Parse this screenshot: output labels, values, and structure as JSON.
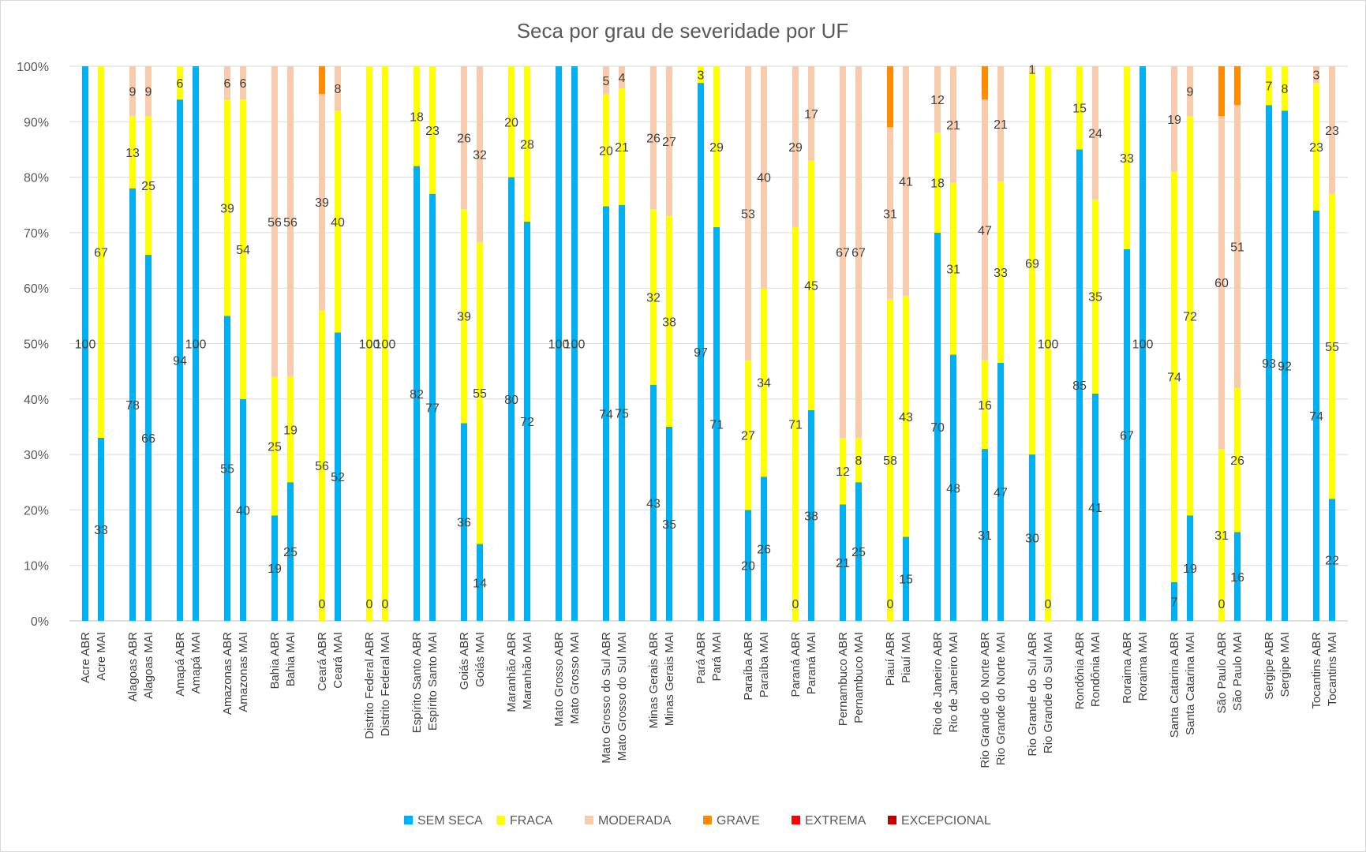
{
  "chart_data": {
    "type": "bar",
    "stacked": true,
    "normalized": true,
    "title": "Seca por grau de severidade por UF",
    "xlabel": "",
    "ylabel": "",
    "ylim": [
      0,
      100
    ],
    "yticks": [
      "0%",
      "10%",
      "20%",
      "30%",
      "40%",
      "50%",
      "60%",
      "70%",
      "80%",
      "90%",
      "100%"
    ],
    "gridlines": true,
    "legend_position": "bottom",
    "groups": [
      {
        "bars": [
          {
            "label": "Acre ABR",
            "values": [
              100,
              0,
              0,
              0,
              0,
              0
            ]
          },
          {
            "label": "Acre MAI",
            "values": [
              33,
              67,
              0,
              0,
              0,
              0
            ]
          }
        ]
      },
      {
        "bars": [
          {
            "label": "Alagoas ABR",
            "values": [
              78,
              13,
              9,
              0,
              0,
              0
            ]
          },
          {
            "label": "Alagoas MAI",
            "values": [
              66,
              25,
              9,
              0,
              0,
              0
            ]
          }
        ]
      },
      {
        "bars": [
          {
            "label": "Amapá ABR",
            "values": [
              94,
              6,
              0,
              0,
              0,
              0
            ]
          },
          {
            "label": "Amapá MAI",
            "values": [
              100,
              0,
              0,
              0,
              0,
              0
            ]
          }
        ]
      },
      {
        "bars": [
          {
            "label": "Amazonas ABR",
            "values": [
              55,
              39,
              6,
              0,
              0,
              0
            ]
          },
          {
            "label": "Amazonas MAI",
            "values": [
              40,
              54,
              6,
              0,
              0,
              0
            ]
          }
        ]
      },
      {
        "bars": [
          {
            "label": "Bahia ABR",
            "values": [
              19,
              25,
              56,
              0,
              0,
              0
            ]
          },
          {
            "label": "Bahia MAI",
            "values": [
              25,
              19,
              56,
              0,
              0,
              0
            ]
          }
        ]
      },
      {
        "bars": [
          {
            "label": "Ceará ABR",
            "values": [
              0,
              56,
              39,
              5,
              0,
              0
            ]
          },
          {
            "label": "Ceará MAI",
            "values": [
              52,
              40,
              8,
              0,
              0,
              0
            ]
          }
        ]
      },
      {
        "bars": [
          {
            "label": "Distrito Federal ABR",
            "values": [
              0,
              100,
              0,
              0,
              0,
              0
            ]
          },
          {
            "label": "Distrito Federal MAI",
            "values": [
              0,
              100,
              0,
              0,
              0,
              0
            ]
          }
        ]
      },
      {
        "bars": [
          {
            "label": "Espírito Santo ABR",
            "values": [
              82,
              18,
              0,
              0,
              0,
              0
            ]
          },
          {
            "label": "Espírito Santo MAI",
            "values": [
              77,
              23,
              0,
              0,
              0,
              0
            ]
          }
        ]
      },
      {
        "bars": [
          {
            "label": "Goiás ABR",
            "values": [
              36,
              39,
              26,
              0,
              0,
              0
            ]
          },
          {
            "label": "Goiás MAI",
            "values": [
              14,
              55,
              32,
              0,
              0,
              0
            ]
          }
        ]
      },
      {
        "bars": [
          {
            "label": "Maranhão ABR",
            "values": [
              80,
              20,
              0,
              0,
              0,
              0
            ]
          },
          {
            "label": "Maranhão MAI",
            "values": [
              72,
              28,
              0,
              0,
              0,
              0
            ]
          }
        ]
      },
      {
        "bars": [
          {
            "label": "Mato Grosso ABR",
            "values": [
              100,
              0,
              0,
              0,
              0,
              0
            ]
          },
          {
            "label": "Mato Grosso MAI",
            "values": [
              100,
              0,
              0,
              0,
              0,
              0
            ]
          }
        ]
      },
      {
        "bars": [
          {
            "label": "Mato Grosso do Sul ABR",
            "values": [
              74,
              20,
              5,
              0,
              0,
              0
            ]
          },
          {
            "label": "Mato Grosso do Sul MAI",
            "values": [
              75,
              21,
              4,
              0,
              0,
              0
            ]
          }
        ]
      },
      {
        "bars": [
          {
            "label": "Minas Gerais ABR",
            "values": [
              43,
              32,
              26,
              0,
              0,
              0
            ]
          },
          {
            "label": "Minas Gerais MAI",
            "values": [
              35,
              38,
              27,
              0,
              0,
              0
            ]
          }
        ]
      },
      {
        "bars": [
          {
            "label": "Pará ABR",
            "values": [
              97,
              3,
              0,
              0,
              0,
              0
            ]
          },
          {
            "label": "Pará MAI",
            "values": [
              71,
              29,
              0,
              0,
              0,
              0
            ]
          }
        ]
      },
      {
        "bars": [
          {
            "label": "Paraíba ABR",
            "values": [
              20,
              27,
              53,
              0,
              0,
              0
            ]
          },
          {
            "label": "Paraíba MAI",
            "values": [
              26,
              34,
              40,
              0,
              0,
              0
            ]
          }
        ]
      },
      {
        "bars": [
          {
            "label": "Paraná ABR",
            "values": [
              0,
              71,
              29,
              0,
              0,
              0
            ]
          },
          {
            "label": "Paraná MAI",
            "values": [
              38,
              45,
              17,
              0,
              0,
              0
            ]
          }
        ]
      },
      {
        "bars": [
          {
            "label": "Pernambuco ABR",
            "values": [
              21,
              12,
              67,
              0,
              0,
              0
            ]
          },
          {
            "label": "Pernambuco MAI",
            "values": [
              25,
              8,
              67,
              0,
              0,
              0
            ]
          }
        ]
      },
      {
        "bars": [
          {
            "label": "Piauí ABR",
            "values": [
              0,
              58,
              31,
              11,
              0,
              0
            ]
          },
          {
            "label": "Piauí MAI",
            "values": [
              15,
              43,
              41,
              0,
              0,
              0
            ]
          }
        ]
      },
      {
        "bars": [
          {
            "label": "Rio de Janeiro ABR",
            "values": [
              70,
              18,
              12,
              0,
              0,
              0
            ]
          },
          {
            "label": "Rio de Janeiro MAI",
            "values": [
              48,
              31,
              21,
              0,
              0,
              0
            ]
          }
        ]
      },
      {
        "bars": [
          {
            "label": "Rio Grande do Norte ABR",
            "values": [
              31,
              16,
              47,
              6,
              0,
              0
            ]
          },
          {
            "label": "Rio Grande do Norte MAI",
            "values": [
              47,
              33,
              21,
              0,
              0,
              0
            ]
          }
        ]
      },
      {
        "bars": [
          {
            "label": "Rio Grande do Sul ABR",
            "values": [
              30,
              69,
              1,
              0,
              0,
              0
            ]
          },
          {
            "label": "Rio Grande do Sul MAI",
            "values": [
              0,
              100,
              0,
              0,
              0,
              0
            ]
          }
        ]
      },
      {
        "bars": [
          {
            "label": "Rondônia ABR",
            "values": [
              85,
              15,
              0,
              0,
              0,
              0
            ]
          },
          {
            "label": "Rondônia MAI",
            "values": [
              41,
              35,
              24,
              0,
              0,
              0
            ]
          }
        ]
      },
      {
        "bars": [
          {
            "label": "Roraima ABR",
            "values": [
              67,
              33,
              0,
              0,
              0,
              0
            ]
          },
          {
            "label": "Roraima MAI",
            "values": [
              100,
              0,
              0,
              0,
              0,
              0
            ]
          }
        ]
      },
      {
        "bars": [
          {
            "label": "Santa Catarina ABR",
            "values": [
              7,
              74,
              19,
              0,
              0,
              0
            ]
          },
          {
            "label": "Santa Catarina MAI",
            "values": [
              19,
              72,
              9,
              0,
              0,
              0
            ]
          }
        ]
      },
      {
        "bars": [
          {
            "label": "São Paulo ABR",
            "values": [
              0,
              31,
              60,
              9,
              0,
              0
            ]
          },
          {
            "label": "São Paulo MAI",
            "values": [
              16,
              26,
              51,
              7,
              0,
              0
            ]
          }
        ]
      },
      {
        "bars": [
          {
            "label": "Sergipe ABR",
            "values": [
              93,
              7,
              0,
              0,
              0,
              0
            ]
          },
          {
            "label": "Sergipe MAI",
            "values": [
              92,
              8,
              0,
              0,
              0,
              0
            ]
          }
        ]
      },
      {
        "bars": [
          {
            "label": "Tocantins ABR",
            "values": [
              74,
              23,
              3,
              0,
              0,
              0
            ]
          },
          {
            "label": "Tocantins MAI",
            "values": [
              22,
              55,
              23,
              0,
              0,
              0
            ]
          }
        ]
      }
    ],
    "series": [
      {
        "name": "SEM SECA",
        "color": "#00b0f0"
      },
      {
        "name": "FRACA",
        "color": "#ffff00"
      },
      {
        "name": "MODERADA",
        "color": "#f8cbad"
      },
      {
        "name": "GRAVE",
        "color": "#ff8c00"
      },
      {
        "name": "EXTREMA",
        "color": "#ff0000"
      },
      {
        "name": "EXCEPCIONAL",
        "color": "#c00000"
      }
    ]
  }
}
